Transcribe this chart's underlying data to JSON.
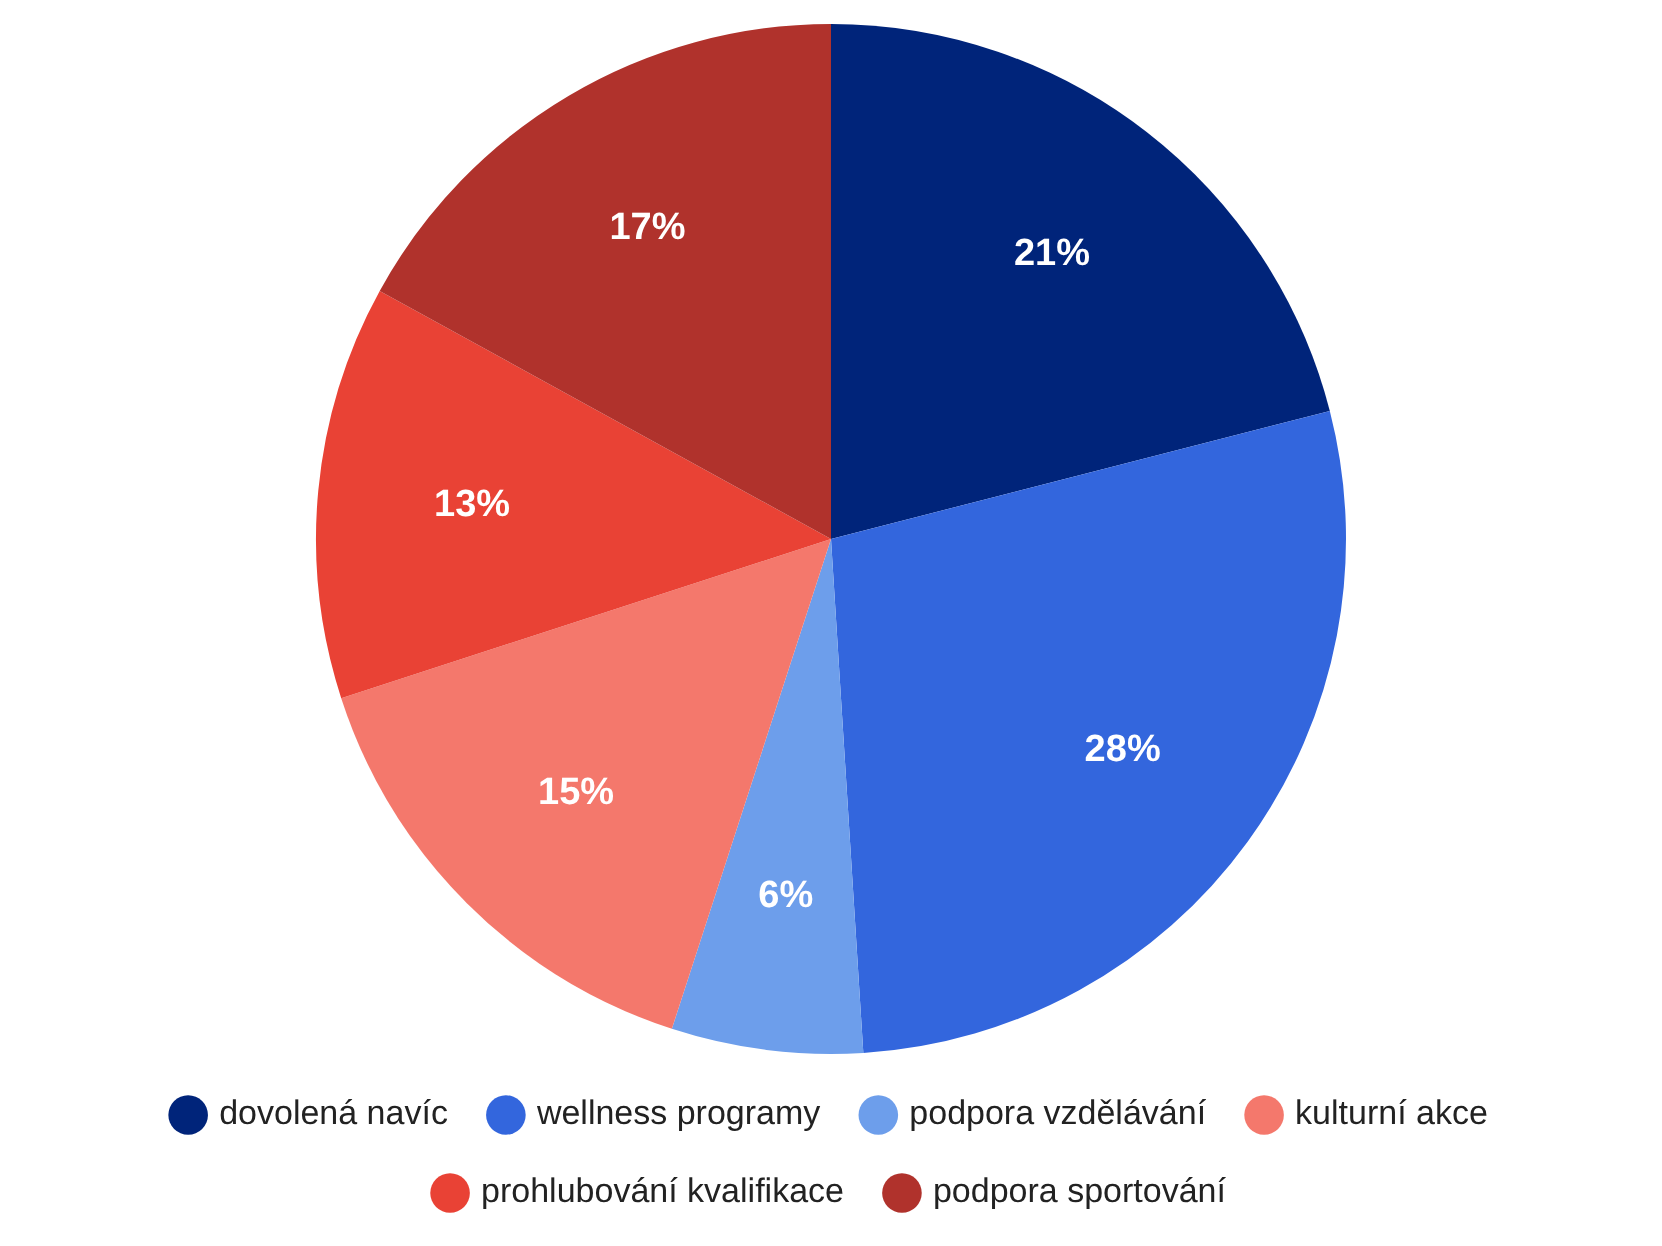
{
  "chart_data": {
    "type": "pie",
    "categories": [
      "dovolená navíc",
      "wellness programy",
      "podpora vzdělávání",
      "kulturní akce",
      "prohlubování kvalifikace",
      "podpora sportování"
    ],
    "values": [
      21,
      28,
      6,
      15,
      13,
      17
    ],
    "value_labels": [
      "21%",
      "28%",
      "6%",
      "15%",
      "13%",
      "17%"
    ],
    "colors": [
      "#00247a",
      "#3366dd",
      "#6d9eeb",
      "#f4786c",
      "#e94235",
      "#b0322c"
    ],
    "legend": "bottom"
  }
}
